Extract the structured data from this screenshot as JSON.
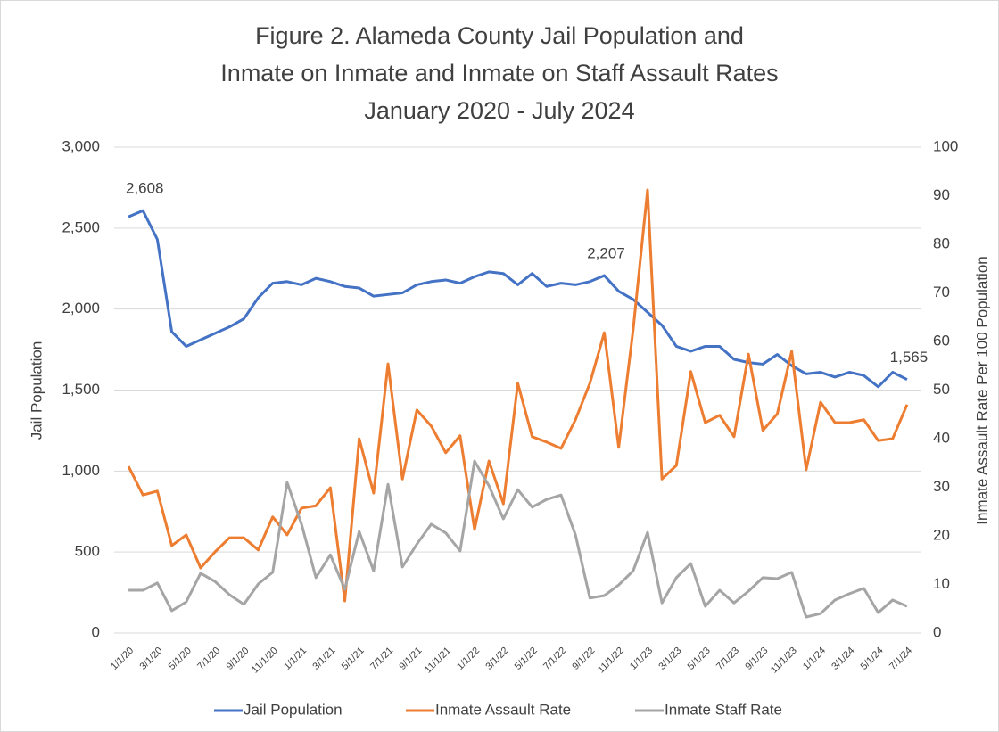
{
  "chart_data": {
    "type": "line",
    "title": [
      "Figure 2. Alameda County Jail Population and",
      "Inmate on Inmate and Inmate on Staff Assault Rates",
      "January 2020 - July 2024"
    ],
    "ylabel": "Jail Population",
    "y2label": "Inmate Assault Rate Per 100 Population",
    "categories": [
      "1/1/20",
      null,
      "3/1/20",
      null,
      "5/1/20",
      null,
      "7/1/20",
      null,
      "9/1/20",
      null,
      "11/1/20",
      null,
      "1/1/21",
      null,
      "3/1/21",
      null,
      "5/1/21",
      null,
      "7/1/21",
      null,
      "9/1/21",
      null,
      "11/1/21",
      null,
      "1/1/22",
      null,
      "3/1/22",
      null,
      "5/1/22",
      null,
      "7/1/22",
      null,
      "9/1/22",
      null,
      "11/1/22",
      null,
      "1/1/23",
      null,
      "3/1/23",
      null,
      "5/1/23",
      null,
      "7/1/23",
      null,
      "9/1/23",
      null,
      "11/1/23",
      null,
      "1/1/24",
      null,
      "3/1/24",
      null,
      "5/1/24",
      null,
      "7/1/24"
    ],
    "series": [
      {
        "name": "Jail Population",
        "color": "#4472c4",
        "axis": "y",
        "values": [
          2570,
          2608,
          2430,
          1860,
          1770,
          1810,
          1850,
          1890,
          1940,
          2070,
          2160,
          2170,
          2150,
          2190,
          2170,
          2140,
          2130,
          2080,
          2090,
          2100,
          2150,
          2170,
          2180,
          2160,
          2200,
          2230,
          2220,
          2150,
          2220,
          2140,
          2160,
          2150,
          2170,
          2207,
          2110,
          2060,
          1980,
          1900,
          1770,
          1740,
          1770,
          1770,
          1690,
          1670,
          1660,
          1720,
          1650,
          1600,
          1610,
          1580,
          1610,
          1590,
          1520,
          1610,
          1565
        ],
        "value_labels": [
          null,
          "2,608",
          null,
          null,
          null,
          null,
          null,
          null,
          null,
          null,
          null,
          null,
          null,
          null,
          null,
          null,
          null,
          null,
          null,
          null,
          null,
          null,
          null,
          null,
          null,
          null,
          null,
          null,
          null,
          null,
          null,
          null,
          null,
          "2,207",
          null,
          null,
          null,
          null,
          null,
          null,
          null,
          null,
          null,
          null,
          null,
          null,
          null,
          null,
          null,
          null,
          null,
          null,
          null,
          null,
          "1,565"
        ]
      },
      {
        "name": "Inmate Assault Rate",
        "color": "#ed7d31",
        "axis": "y2",
        "values": [
          34.3,
          28.4,
          29.2,
          18,
          20.2,
          13.4,
          16.7,
          19.6,
          19.6,
          17.1,
          23.9,
          20.2,
          25.7,
          26.2,
          29.9,
          6.6,
          40,
          28.8,
          55.4,
          31.7,
          45.9,
          42.6,
          37.1,
          40.6,
          21.3,
          35.4,
          26.6,
          51.4,
          40.4,
          39.3,
          38,
          43.9,
          51.4,
          61.8,
          38.2,
          62.4,
          91.2,
          31.7,
          34.5,
          53.8,
          43.3,
          44.8,
          40.4,
          57.4,
          41.7,
          45.1,
          58,
          33.6,
          47.5,
          43.3,
          43.3,
          43.9,
          39.6,
          40,
          47
        ]
      },
      {
        "name": "Inmate Staff Rate",
        "color": "#a5a5a5",
        "axis": "y2",
        "values": [
          8.8,
          8.8,
          10.3,
          4.6,
          6.4,
          12.3,
          10.6,
          7.9,
          5.9,
          10.1,
          12.5,
          31,
          22.4,
          11.4,
          16.1,
          9,
          20.9,
          12.8,
          30.6,
          13.6,
          18.3,
          22.4,
          20.6,
          16.9,
          35.4,
          30.3,
          23.5,
          29.5,
          25.9,
          27.5,
          28.4,
          20.2,
          7.2,
          7.7,
          9.9,
          12.8,
          20.7,
          6.2,
          11.4,
          14.3,
          5.5,
          8.8,
          6.2,
          8.6,
          11.4,
          11.2,
          12.5,
          3.3,
          4,
          6.8,
          8.1,
          9.2,
          4.2,
          6.8,
          5.5
        ]
      }
    ],
    "ylim": [
      0,
      3000
    ],
    "yticks": [
      0,
      500,
      {
        "value": 1000,
        "label": "1,000"
      },
      {
        "value": 1500,
        "label": "1,500"
      },
      {
        "value": 2000,
        "label": "2,000"
      },
      {
        "value": 2500,
        "label": "2,500"
      },
      {
        "value": 3000,
        "label": "3,000"
      }
    ],
    "y2lim": [
      0,
      100
    ],
    "y2ticks": [
      0,
      10,
      20,
      30,
      40,
      50,
      60,
      70,
      80,
      90,
      100
    ],
    "grid": true,
    "legend": "bottom"
  }
}
